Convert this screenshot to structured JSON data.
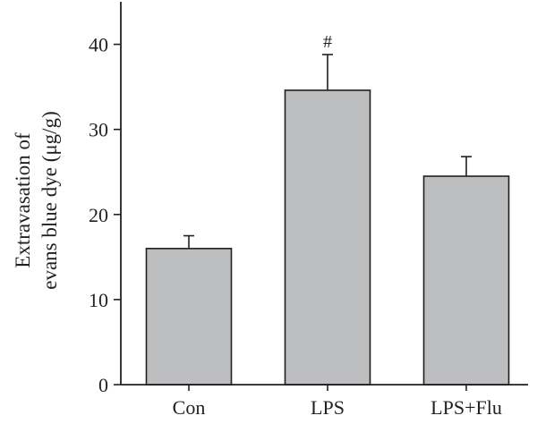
{
  "chart_data": {
    "type": "bar",
    "title": "",
    "xlabel": "",
    "ylabel_lines": [
      "Extravasation of",
      "evans blue dye (μg/g)"
    ],
    "ylim": [
      0,
      45
    ],
    "yticks": [
      0,
      10,
      20,
      30,
      40
    ],
    "categories": [
      "Con",
      "LPS",
      "LPS+Flu"
    ],
    "values": [
      16,
      34.6,
      24.5
    ],
    "errors": [
      1.5,
      4.2,
      2.3
    ],
    "annotations": [
      "",
      "#",
      ""
    ],
    "bar_color": "#bcbec0",
    "edge_color": "#231f20",
    "grid": false
  }
}
